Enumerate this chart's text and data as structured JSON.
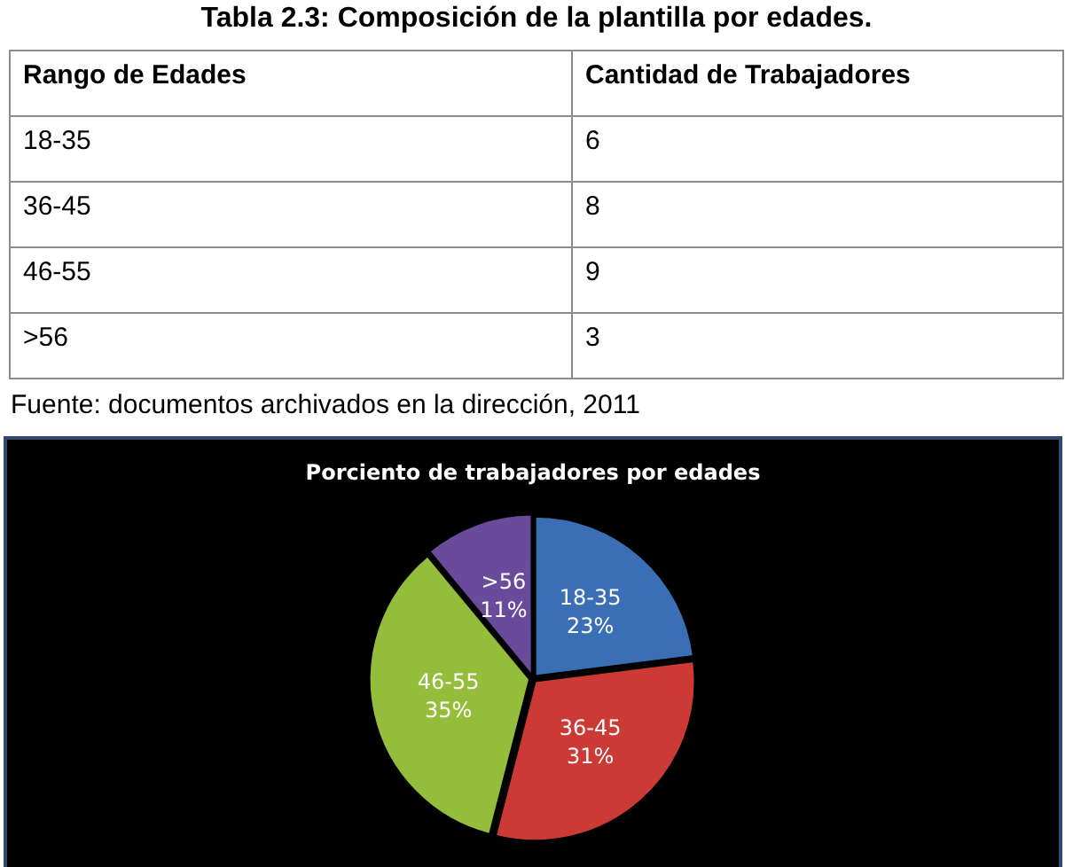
{
  "chart_data": [
    {
      "type": "other",
      "title": "Tabla 2.3: Composición de la plantilla por edades.",
      "categories": [
        "18-35",
        "36-45",
        "46-55",
        ">56"
      ],
      "values": [
        6,
        8,
        9,
        3
      ],
      "data_labels": true,
      "annotations": [
        "Rango de Edades",
        "Cantidad de Trabajadores",
        "Fuente: documentos archivados en la dirección, 2011"
      ]
    },
    {
      "type": "pie",
      "title": "Porciento de trabajadores por edades",
      "categories": [
        "18-35",
        "36-45",
        "46-55",
        ">56"
      ],
      "values": [
        23,
        31,
        35,
        11
      ],
      "colors": [
        "#3a6fb5",
        "#cc3a35",
        "#93bd3a",
        "#6a4a9a"
      ],
      "value_labels": [
        "23%",
        "31%",
        "35%",
        "11%"
      ]
    }
  ]
}
